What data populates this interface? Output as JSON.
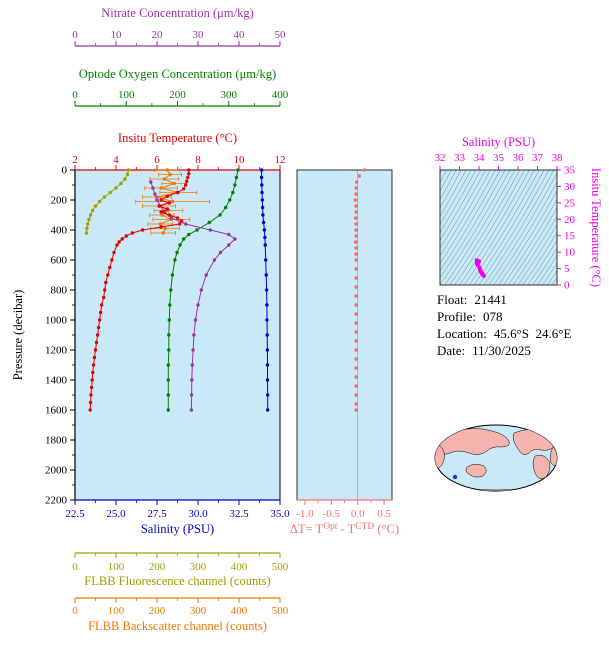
{
  "colors": {
    "background": "#ffffff",
    "plot_bg": "#c9e9f9",
    "nitrate": "#9933aa",
    "oxygen": "#008000",
    "temperature": "#e60000",
    "salinity": "#0000cc",
    "pressure": "#000000",
    "fluorescence": "#a0a000",
    "backscatter": "#ee7700",
    "delta_t": "#f47070",
    "ts_magenta": "#ee00ee",
    "ts_contour": "#337777",
    "map_land": "#f2b4ac",
    "map_ocean": "#c9e9f9",
    "map_marker": "#2233dd",
    "frame": "#000000",
    "zero_line": "#999999"
  },
  "info": {
    "rows": [
      {
        "label": "Float:",
        "value": "21441"
      },
      {
        "label": "Profile:",
        "value": "078"
      },
      {
        "label": "Location:",
        "value": "45.6°S  24.6°E"
      },
      {
        "label": "Date:",
        "value": "11/30/2025"
      }
    ]
  },
  "chart_data": {
    "profile": {
      "type": "line",
      "ylabel": "Pressure (decibar)",
      "ylim": [
        0,
        2200
      ],
      "yticks": [
        "0",
        "200",
        "400",
        "600",
        "800",
        "1000",
        "1200",
        "1400",
        "1600",
        "1800",
        "2000",
        "2200"
      ],
      "axes": [
        {
          "id": "nitrate",
          "title": "Nitrate Concentration (μm/kg)",
          "range": [
            0,
            50
          ],
          "ticks": [
            "0",
            "10",
            "20",
            "30",
            "40",
            "50"
          ],
          "side": "top"
        },
        {
          "id": "oxygen",
          "title": "Optode Oxygen Concentration (μm/kg)",
          "range": [
            0,
            400
          ],
          "ticks": [
            "0",
            "100",
            "200",
            "300",
            "400"
          ],
          "side": "top"
        },
        {
          "id": "temperature",
          "title": "Insitu Temperature (°C)",
          "range": [
            2,
            12
          ],
          "ticks": [
            "2",
            "4",
            "6",
            "8",
            "10",
            "12"
          ],
          "side": "top"
        },
        {
          "id": "salinity",
          "title": "Salinity (PSU)",
          "range": [
            22.5,
            35.0
          ],
          "ticks": [
            "22.5",
            "25.0",
            "27.5",
            "30.0",
            "32.5",
            "35.0"
          ],
          "side": "bottom"
        },
        {
          "id": "fluorescence",
          "title": "FLBB Fluorescence channel (counts)",
          "range": [
            0,
            500
          ],
          "ticks": [
            "0",
            "100",
            "200",
            "300",
            "400",
            "500"
          ],
          "side": "bottom"
        },
        {
          "id": "backscatter",
          "title": "FLBB Backscatter channel (counts)",
          "range": [
            0,
            500
          ],
          "ticks": [
            "0",
            "100",
            "200",
            "300",
            "400",
            "500"
          ],
          "side": "bottom"
        }
      ],
      "series": [
        {
          "name": "fluorescence",
          "axis": "fluorescence",
          "points": [
            [
              0,
              130
            ],
            [
              30,
              128
            ],
            [
              60,
              122
            ],
            [
              90,
              112
            ],
            [
              120,
              100
            ],
            [
              150,
              86
            ],
            [
              180,
              72
            ],
            [
              210,
              60
            ],
            [
              240,
              50
            ],
            [
              270,
              43
            ],
            [
              300,
              38
            ],
            [
              330,
              34
            ],
            [
              360,
              31
            ],
            [
              390,
              29
            ],
            [
              420,
              28
            ]
          ]
        },
        {
          "name": "backscatter",
          "axis": "backscatter",
          "xerr": true,
          "points": [
            [
              0,
              225,
              30
            ],
            [
              30,
              232,
              28
            ],
            [
              60,
              218,
              35
            ],
            [
              90,
              242,
              30
            ],
            [
              120,
              210,
              40
            ],
            [
              150,
              252,
              45
            ],
            [
              180,
              200,
              35
            ],
            [
              210,
              238,
              90
            ],
            [
              240,
              205,
              40
            ],
            [
              270,
              228,
              35
            ],
            [
              300,
              212,
              30
            ],
            [
              330,
              235,
              45
            ],
            [
              360,
              208,
              30
            ],
            [
              390,
              220,
              35
            ],
            [
              420,
              215,
              30
            ]
          ]
        },
        {
          "name": "oxygen",
          "axis": "oxygen",
          "points": [
            [
              0,
              318
            ],
            [
              50,
              315
            ],
            [
              100,
              312
            ],
            [
              150,
              308
            ],
            [
              200,
              302
            ],
            [
              250,
              294
            ],
            [
              300,
              283
            ],
            [
              350,
              262
            ],
            [
              400,
              238
            ],
            [
              430,
              222
            ],
            [
              460,
              212
            ],
            [
              500,
              205
            ],
            [
              550,
              199
            ],
            [
              600,
              195
            ],
            [
              700,
              190
            ],
            [
              800,
              187
            ],
            [
              900,
              185
            ],
            [
              1000,
              184
            ],
            [
              1100,
              183
            ],
            [
              1200,
              183
            ],
            [
              1300,
              182
            ],
            [
              1400,
              182
            ],
            [
              1500,
              182
            ],
            [
              1600,
              182
            ]
          ]
        },
        {
          "name": "nitrate",
          "axis": "nitrate",
          "points": [
            [
              80,
              18.5
            ],
            [
              120,
              19
            ],
            [
              160,
              19.5
            ],
            [
              200,
              20
            ],
            [
              240,
              20.8
            ],
            [
              280,
              21.8
            ],
            [
              320,
              23.5
            ],
            [
              360,
              27
            ],
            [
              400,
              33
            ],
            [
              430,
              37.5
            ],
            [
              460,
              39
            ],
            [
              500,
              37.5
            ],
            [
              550,
              35.5
            ],
            [
              600,
              34
            ],
            [
              700,
              32
            ],
            [
              800,
              30.8
            ],
            [
              900,
              30
            ],
            [
              1000,
              29.4
            ],
            [
              1100,
              29
            ],
            [
              1200,
              28.8
            ],
            [
              1300,
              28.6
            ],
            [
              1400,
              28.5
            ],
            [
              1500,
              28.45
            ],
            [
              1600,
              28.4
            ]
          ]
        },
        {
          "name": "temperature",
          "axis": "temperature",
          "points": [
            [
              0,
              7.55
            ],
            [
              25,
              7.55
            ],
            [
              50,
              7.5
            ],
            [
              75,
              7.45
            ],
            [
              100,
              7.4
            ],
            [
              125,
              7.3
            ],
            [
              150,
              7.0
            ],
            [
              175,
              6.5
            ],
            [
              200,
              6.2
            ],
            [
              220,
              6.6
            ],
            [
              240,
              6.1
            ],
            [
              260,
              6.5
            ],
            [
              280,
              6.2
            ],
            [
              300,
              6.6
            ],
            [
              320,
              7.0
            ],
            [
              340,
              7.2
            ],
            [
              360,
              7.1
            ],
            [
              380,
              6.2
            ],
            [
              400,
              5.3
            ],
            [
              420,
              4.8
            ],
            [
              440,
              4.5
            ],
            [
              460,
              4.3
            ],
            [
              480,
              4.15
            ],
            [
              500,
              4.05
            ],
            [
              550,
              3.9
            ],
            [
              600,
              3.8
            ],
            [
              650,
              3.7
            ],
            [
              700,
              3.6
            ],
            [
              750,
              3.5
            ],
            [
              800,
              3.45
            ],
            [
              850,
              3.4
            ],
            [
              900,
              3.3
            ],
            [
              950,
              3.25
            ],
            [
              1000,
              3.2
            ],
            [
              1050,
              3.15
            ],
            [
              1100,
              3.1
            ],
            [
              1150,
              3.05
            ],
            [
              1200,
              3.0
            ],
            [
              1250,
              2.95
            ],
            [
              1300,
              2.9
            ],
            [
              1350,
              2.87
            ],
            [
              1400,
              2.84
            ],
            [
              1450,
              2.81
            ],
            [
              1500,
              2.78
            ],
            [
              1550,
              2.76
            ],
            [
              1600,
              2.74
            ]
          ]
        },
        {
          "name": "salinity",
          "axis": "salinity",
          "points": [
            [
              0,
              33.88
            ],
            [
              50,
              33.88
            ],
            [
              100,
              33.89
            ],
            [
              150,
              33.9
            ],
            [
              200,
              33.92
            ],
            [
              250,
              33.94
            ],
            [
              300,
              33.96
            ],
            [
              350,
              34.0
            ],
            [
              400,
              34.05
            ],
            [
              450,
              34.08
            ],
            [
              500,
              34.1
            ],
            [
              600,
              34.13
            ],
            [
              700,
              34.16
            ],
            [
              800,
              34.18
            ],
            [
              900,
              34.2
            ],
            [
              1000,
              34.21
            ],
            [
              1100,
              34.22
            ],
            [
              1200,
              34.23
            ],
            [
              1300,
              34.24
            ],
            [
              1400,
              34.24
            ],
            [
              1500,
              34.25
            ],
            [
              1600,
              34.25
            ]
          ]
        }
      ]
    },
    "delta": {
      "type": "scatter",
      "xlabel_parts": [
        [
          "ΔT= T",
          false
        ],
        [
          "Opt",
          true
        ],
        [
          " - T",
          false
        ],
        [
          "CTD",
          true
        ],
        [
          " (°C)",
          false
        ]
      ],
      "xlim": [
        -1.15,
        0.65
      ],
      "xticks": [
        "-1.0",
        "-0.5",
        "0.0",
        "0.5"
      ],
      "points": [
        [
          0,
          0.13
        ],
        [
          40,
          0.03
        ],
        [
          80,
          -0.02
        ],
        [
          120,
          -0.03
        ],
        [
          160,
          -0.03
        ],
        [
          200,
          -0.04
        ],
        [
          240,
          -0.03
        ],
        [
          280,
          -0.03
        ],
        [
          320,
          -0.04
        ],
        [
          360,
          -0.03
        ],
        [
          400,
          -0.03
        ],
        [
          440,
          -0.03
        ],
        [
          480,
          -0.04
        ],
        [
          520,
          -0.03
        ],
        [
          560,
          -0.03
        ],
        [
          600,
          -0.03
        ],
        [
          660,
          -0.03
        ],
        [
          720,
          -0.03
        ],
        [
          780,
          -0.03
        ],
        [
          840,
          -0.03
        ],
        [
          900,
          -0.03
        ],
        [
          960,
          -0.03
        ],
        [
          1020,
          -0.03
        ],
        [
          1080,
          -0.03
        ],
        [
          1140,
          -0.03
        ],
        [
          1200,
          -0.03
        ],
        [
          1260,
          -0.03
        ],
        [
          1320,
          -0.03
        ],
        [
          1380,
          -0.03
        ],
        [
          1440,
          -0.03
        ],
        [
          1500,
          -0.03
        ],
        [
          1560,
          -0.03
        ],
        [
          1600,
          -0.03
        ]
      ]
    },
    "ts": {
      "type": "scatter",
      "xlabel": "Salinity (PSU)",
      "ylabel": "Insitu Temperature (°C)",
      "xlim": [
        32,
        38
      ],
      "ylim": [
        0,
        35
      ],
      "xticks": [
        "32",
        "33",
        "34",
        "35",
        "36",
        "37",
        "38"
      ],
      "yticks": [
        "0",
        "5",
        "10",
        "15",
        "20",
        "25",
        "30",
        "35"
      ],
      "points": [
        [
          33.88,
          7.55
        ],
        [
          33.88,
          7.5
        ],
        [
          33.89,
          7.4
        ],
        [
          33.9,
          7.0
        ],
        [
          33.9,
          6.5
        ],
        [
          33.92,
          6.2
        ],
        [
          33.93,
          6.4
        ],
        [
          33.94,
          6.2
        ],
        [
          33.96,
          6.6
        ],
        [
          33.98,
          7.0
        ],
        [
          34.0,
          7.2
        ],
        [
          34.02,
          5.3
        ],
        [
          34.05,
          4.8
        ],
        [
          34.07,
          4.4
        ],
        [
          34.08,
          4.2
        ],
        [
          34.1,
          4.05
        ],
        [
          34.12,
          3.9
        ],
        [
          34.13,
          3.8
        ],
        [
          34.15,
          3.6
        ],
        [
          34.17,
          3.45
        ],
        [
          34.19,
          3.3
        ],
        [
          34.2,
          3.2
        ],
        [
          34.22,
          3.05
        ],
        [
          34.23,
          2.95
        ],
        [
          34.24,
          2.85
        ],
        [
          34.25,
          2.75
        ]
      ]
    }
  }
}
